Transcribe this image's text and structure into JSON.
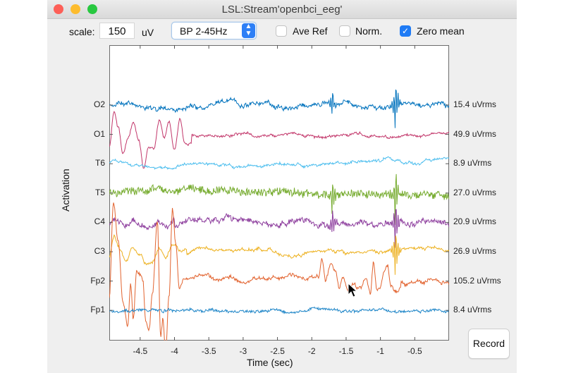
{
  "window": {
    "title": "LSL:Stream'openbci_eeg'"
  },
  "toolbar": {
    "scale_label": "scale:",
    "scale_value": "150",
    "scale_unit": "uV",
    "filter_selected": "BP 2-45Hz",
    "checkboxes": [
      {
        "label": "Ave Ref",
        "checked": false
      },
      {
        "label": "Norm.",
        "checked": false
      },
      {
        "label": "Zero mean",
        "checked": true
      }
    ]
  },
  "record_button": {
    "label": "Record"
  },
  "chart_data": {
    "type": "line",
    "title": "",
    "xlabel": "Time (sec)",
    "ylabel": "Activation",
    "xlim": [
      -4.95,
      0.0
    ],
    "x_ticks": [
      "-4.5",
      "-4",
      "-3.5",
      "-3",
      "-2.5",
      "-2",
      "-1.5",
      "-1",
      "-0.5"
    ],
    "x_tick_values": [
      -4.5,
      -4,
      -3.5,
      -3,
      -2.5,
      -2,
      -1.5,
      -1,
      -0.5
    ],
    "grid": false,
    "legend_position": "none",
    "series": [
      {
        "name": "O2",
        "color": "#0072BD",
        "rms": "15.4 uVrms",
        "noise": 2.2,
        "amp": 3.0,
        "seed": 11
      },
      {
        "name": "O1",
        "color": "#C2366A",
        "rms": "49.9 uVrms",
        "noise": 1.2,
        "amp": 2.0,
        "seed": 23
      },
      {
        "name": "T6",
        "color": "#4DBEEE",
        "rms": "8.9 uVrms",
        "noise": 1.2,
        "amp": 2.0,
        "seed": 37
      },
      {
        "name": "T5",
        "color": "#77AC30",
        "rms": "27.0 uVrms",
        "noise": 5.5,
        "amp": 2.0,
        "seed": 41
      },
      {
        "name": "C4",
        "color": "#8E3F9E",
        "rms": "20.9 uVrms",
        "noise": 3.2,
        "amp": 3.0,
        "seed": 53
      },
      {
        "name": "C3",
        "color": "#EDB120",
        "rms": "26.9 uVrms",
        "noise": 1.3,
        "amp": 2.5,
        "seed": 67
      },
      {
        "name": "Fp2",
        "color": "#E2632F",
        "rms": "105.2 uVrms",
        "noise": 1.8,
        "amp": 3.0,
        "seed": 71
      },
      {
        "name": "Fp1",
        "color": "#1F86C8",
        "rms": "8.4 uVrms",
        "noise": 1.6,
        "amp": 1.5,
        "seed": 83
      }
    ],
    "events": [
      {
        "channel": "O1",
        "x": [
          -4.95,
          -4.88,
          -4.82,
          -4.75,
          -4.68,
          -4.6,
          -4.52,
          -4.45,
          -4.38,
          -4.3,
          -4.22,
          -4.15,
          -4.08,
          -4.0,
          -3.92,
          -3.85,
          -3.75
        ],
        "y": [
          -18,
          30,
          10,
          -30,
          -8,
          15,
          -10,
          -45,
          -15,
          -18,
          20,
          -5,
          18,
          -20,
          25,
          -12,
          -12
        ]
      },
      {
        "channel": "Fp2",
        "x": [
          -4.95,
          -4.89,
          -4.82,
          -4.75,
          -4.68,
          -4.64,
          -4.6,
          -4.55,
          -4.5,
          -4.46,
          -4.42,
          -4.37,
          -4.32,
          -4.25,
          -4.2,
          -4.17,
          -4.13,
          -4.08,
          -4.03,
          -3.98,
          -3.93,
          -3.86,
          -3.78
        ],
        "y": [
          -20,
          115,
          60,
          -30,
          -60,
          -5,
          -55,
          12,
          10,
          0,
          -60,
          -70,
          -15,
          90,
          -75,
          -55,
          -100,
          -20,
          105,
          55,
          -10,
          0,
          0
        ]
      },
      {
        "channel": "C3",
        "x": [
          -4.95,
          -4.88,
          -4.8,
          -4.7,
          -4.6,
          -4.5,
          -4.42,
          -4.32,
          -4.22,
          -4.12,
          -4.02,
          -3.92,
          -3.82
        ],
        "y": [
          -8,
          25,
          5,
          -12,
          10,
          -5,
          -18,
          -12,
          5,
          -5,
          15,
          5,
          5
        ]
      },
      {
        "channel": "C4",
        "x": [
          -4.95,
          -4.88,
          -4.8,
          -4.7,
          -4.6,
          -4.5,
          -4.4,
          -4.3,
          -4.2,
          -4.1,
          -4.0
        ],
        "y": [
          -2,
          10,
          5,
          -5,
          5,
          -2,
          -8,
          -2,
          3,
          -4,
          8
        ]
      },
      {
        "channel": "Fp2",
        "x": [
          -1.9,
          -1.85,
          -1.8,
          -1.72,
          -1.65,
          -1.6,
          -1.55,
          -1.48,
          -1.4,
          -1.3,
          -1.22,
          -1.15,
          -1.1,
          -1.05,
          -1.0,
          -0.95,
          -0.9,
          -0.85,
          -0.78,
          -0.7
        ],
        "y": [
          0,
          25,
          -5,
          20,
          10,
          -10,
          5,
          -12,
          -2,
          -8,
          5,
          -15,
          30,
          -10,
          -5,
          15,
          25,
          -5,
          -18,
          -8
        ]
      }
    ],
    "spikes": [
      {
        "x": -1.7,
        "channels": [
          "O2",
          "T5",
          "C4"
        ],
        "size": 22
      },
      {
        "x": -0.78,
        "channels": [
          "O2",
          "T5",
          "C4",
          "C3"
        ],
        "size": 40
      }
    ]
  }
}
